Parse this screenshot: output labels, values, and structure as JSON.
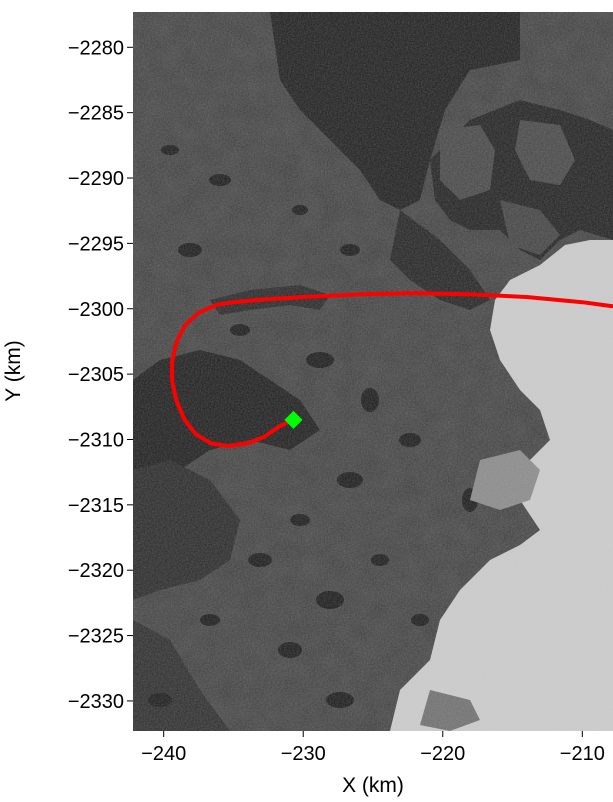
{
  "chart_data": {
    "type": "map",
    "xlabel": "X (km)",
    "ylabel": "Y (km)",
    "xlim": [
      -242.2,
      -207.8
    ],
    "ylim": [
      -2332.3,
      -2277.3
    ],
    "xticks": [
      -240,
      -230,
      -220,
      -210
    ],
    "xtick_labels": [
      "−240",
      "−230",
      "−220",
      "−210"
    ],
    "yticks": [
      -2280,
      -2285,
      -2290,
      -2295,
      -2300,
      -2305,
      -2310,
      -2315,
      -2320,
      -2325,
      -2330
    ],
    "ytick_labels": [
      "−2280",
      "−2285",
      "−2290",
      "−2295",
      "−2300",
      "−2305",
      "−2310",
      "−2315",
      "−2320",
      "−2325",
      "−2330"
    ],
    "background": "grayscale satellite image of coastal terrain with lakes; bright ice sheet to the east",
    "track": {
      "color": "#ff0000",
      "points": [
        [
          -207.9,
          -2299.8
        ],
        [
          -210.0,
          -2299.5
        ],
        [
          -214.0,
          -2299.1
        ],
        [
          -218.0,
          -2298.9
        ],
        [
          -222.0,
          -2298.8
        ],
        [
          -226.0,
          -2298.9
        ],
        [
          -230.0,
          -2299.1
        ],
        [
          -233.0,
          -2299.3
        ],
        [
          -235.0,
          -2299.5
        ],
        [
          -236.2,
          -2299.7
        ],
        [
          -237.5,
          -2300.3
        ],
        [
          -238.5,
          -2301.3
        ],
        [
          -239.1,
          -2302.6
        ],
        [
          -239.4,
          -2304.0
        ],
        [
          -239.4,
          -2305.5
        ],
        [
          -239.1,
          -2307.0
        ],
        [
          -238.5,
          -2308.5
        ],
        [
          -237.7,
          -2309.6
        ],
        [
          -236.6,
          -2310.3
        ],
        [
          -235.4,
          -2310.5
        ],
        [
          -234.0,
          -2310.3
        ],
        [
          -232.8,
          -2309.8
        ],
        [
          -231.7,
          -2309.0
        ],
        [
          -230.8,
          -2308.5
        ]
      ]
    },
    "marker": {
      "x": -230.7,
      "y": -2308.5,
      "color": "#00ff00",
      "shape": "diamond"
    }
  }
}
